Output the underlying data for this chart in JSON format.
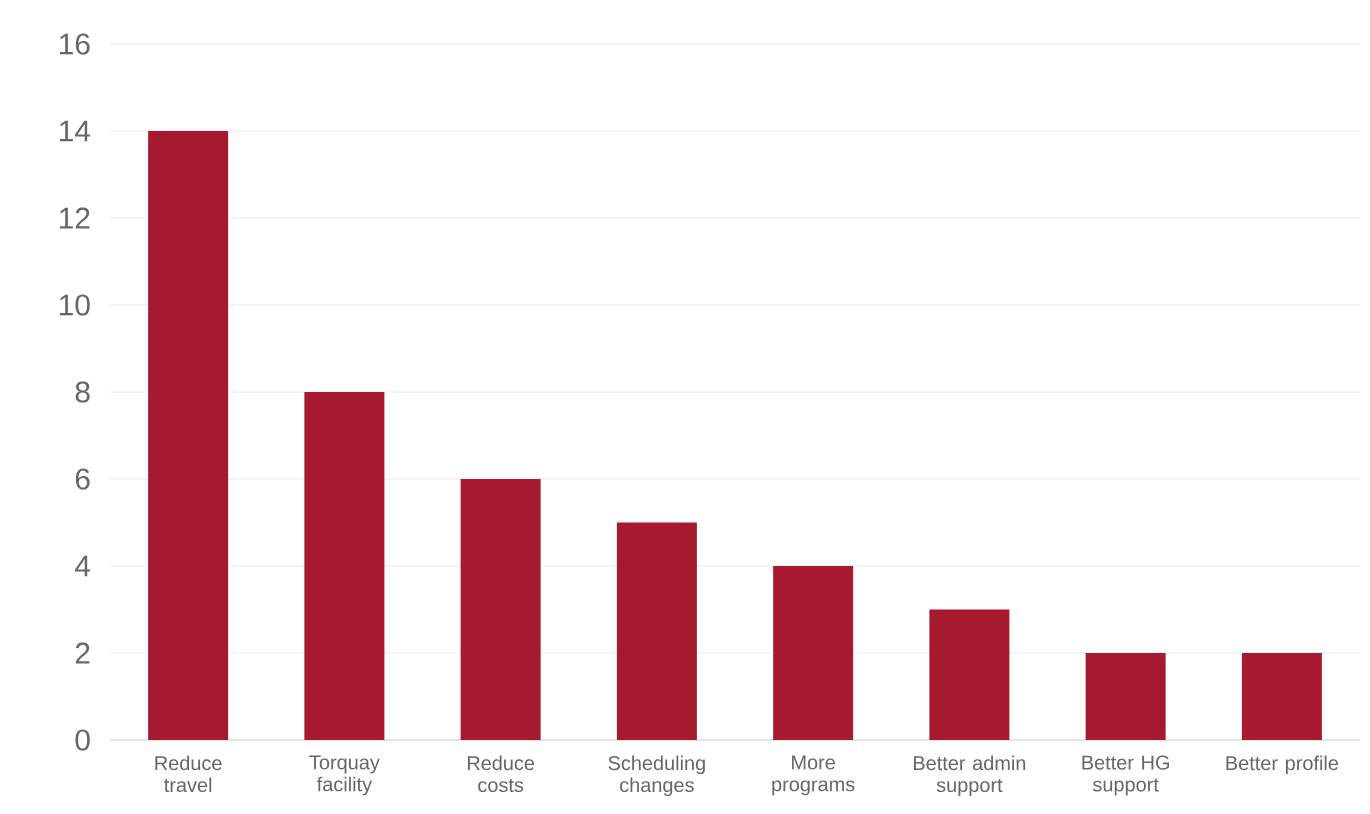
{
  "chart_data": {
    "type": "bar",
    "categories": [
      "Reduce travel",
      "Torquay facility",
      "Reduce costs",
      "Scheduling changes",
      "More programs",
      "Better admin support",
      "Better HG support",
      "Better profile"
    ],
    "values": [
      14,
      8,
      6,
      5,
      4,
      3,
      2,
      2
    ],
    "color": "#a6192e",
    "ylim": [
      0,
      16
    ],
    "yticks": [
      0,
      2,
      4,
      6,
      8,
      10,
      12,
      14,
      16
    ],
    "grid": "y"
  }
}
